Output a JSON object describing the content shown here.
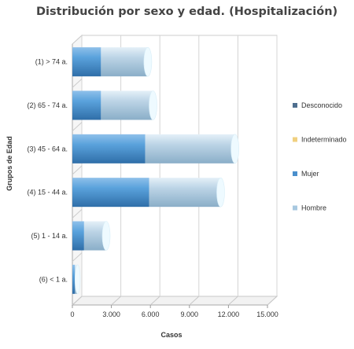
{
  "chart_data": {
    "type": "bar",
    "orientation": "horizontal",
    "stacked": true,
    "style": "3d-cylinder",
    "title": "Distribución por sexo y edad. (Hospitalización)",
    "xlabel": "Casos",
    "ylabel": "Grupos de Edad",
    "xlim": [
      0,
      15000
    ],
    "x_ticks": [
      0,
      3000,
      6000,
      9000,
      12000,
      15000
    ],
    "x_tick_labels": [
      "0",
      "3.000",
      "6.000",
      "9.000",
      "12.000",
      "15.000"
    ],
    "grid": true,
    "legend_position": "right",
    "categories": [
      "(1) > 74 a.",
      "(2) 65 - 74 a.",
      "(3) 45 - 64 a.",
      "(4) 15 - 44 a.",
      "(5) 1 - 14 a.",
      "(6) < 1 a."
    ],
    "legend": [
      "Desconocido",
      "Indeterminado",
      "Mujer",
      "Hombre"
    ],
    "series": [
      {
        "name": "Desconocido",
        "color": "#4f6f8f",
        "values": [
          0,
          0,
          0,
          0,
          0,
          0
        ]
      },
      {
        "name": "Indeterminado",
        "color": "#f0d080",
        "values": [
          0,
          0,
          0,
          0,
          0,
          0
        ]
      },
      {
        "name": "Mujer",
        "color": "#4a8fcc",
        "values": [
          2200,
          2200,
          5600,
          5900,
          900,
          200
        ]
      },
      {
        "name": "Hombre",
        "color": "#a8c8e0",
        "values": [
          3600,
          4000,
          6900,
          5500,
          1700,
          200
        ]
      }
    ]
  }
}
